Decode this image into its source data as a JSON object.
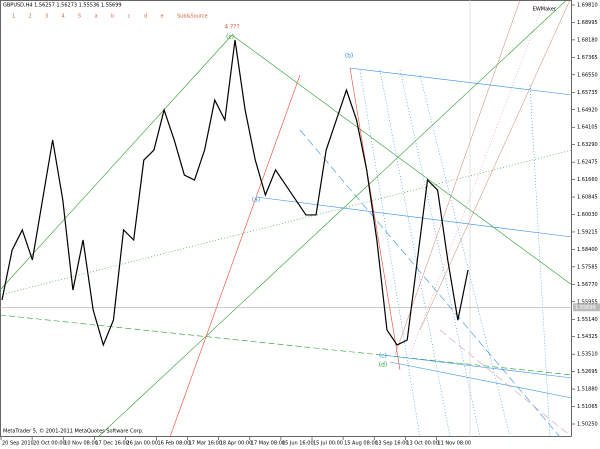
{
  "header": {
    "symbol": "GBPUSD,H4 1.56257 1.56273 1.55536 1.55699",
    "indicator": "EWMaker",
    "copyright": "MetaTrader 5, © 2001-2011 MetaQuotes Software Corp."
  },
  "toolbar": [
    "1",
    "2",
    "3",
    "4",
    "5",
    "a",
    "b",
    "c",
    "d",
    "e",
    "Sub&Source"
  ],
  "price_axis": {
    "lim": [
      1.5025,
      1.6981
    ],
    "current": 1.55699,
    "current_label": "1.55699",
    "ticks": [
      {
        "value": 1.6981,
        "label": "1.69810"
      },
      {
        "value": 1.68995,
        "label": "1.68995"
      },
      {
        "value": 1.6818,
        "label": "1.68180"
      },
      {
        "value": 1.67365,
        "label": "1.67365"
      },
      {
        "value": 1.6655,
        "label": "1.66550"
      },
      {
        "value": 1.65735,
        "label": "1.65735"
      },
      {
        "value": 1.6492,
        "label": "1.64920"
      },
      {
        "value": 1.64105,
        "label": "1.64105"
      },
      {
        "value": 1.6329,
        "label": "1.63290"
      },
      {
        "value": 1.62475,
        "label": "1.62475"
      },
      {
        "value": 1.6166,
        "label": "1.61660"
      },
      {
        "value": 1.60845,
        "label": "1.60845"
      },
      {
        "value": 1.6003,
        "label": "1.60030"
      },
      {
        "value": 1.59215,
        "label": "1.59215"
      },
      {
        "value": 1.584,
        "label": "1.58400"
      },
      {
        "value": 1.57585,
        "label": "1.57585"
      },
      {
        "value": 1.5677,
        "label": "1.56770"
      },
      {
        "value": 1.55955,
        "label": "1.55955"
      },
      {
        "value": 1.5514,
        "label": "1.55140"
      },
      {
        "value": 1.54325,
        "label": "1.54325"
      },
      {
        "value": 1.5351,
        "label": "1.53510"
      },
      {
        "value": 1.52695,
        "label": "1.52695"
      },
      {
        "value": 1.5188,
        "label": "1.51880"
      },
      {
        "value": 1.51065,
        "label": "1.51065"
      },
      {
        "value": 1.5025,
        "label": "1.50250"
      }
    ]
  },
  "time_axis": [
    "20 Sep 2010",
    "20 Oct 00:00",
    "10 Nov 08:00",
    "17 Dec 16:00",
    "26 Jan 00:00",
    "16 Feb 08:00",
    "17 Mar 16:00",
    "18 Apr 00:00",
    "17 May 08:00",
    "15 Jun 16:00",
    "15 Jul 00:00",
    "15 Aug 08:00",
    "13 Sep 16:00",
    "13 Oct 00:00",
    "11 Nov 08:00"
  ],
  "price": [
    1.5604,
    1.5837,
    1.5931,
    1.5791,
    1.6071,
    1.6351,
    1.6071,
    1.565,
    1.5884,
    1.5557,
    1.5394,
    1.551,
    1.5931,
    1.5884,
    1.6257,
    1.6304,
    1.6491,
    1.6351,
    1.6187,
    1.6164,
    1.6304,
    1.6537,
    1.6444,
    1.6818,
    1.6491,
    1.6257,
    1.6094,
    1.6211,
    1.6141,
    1.6071,
    1.6001,
    1.6001,
    1.6304,
    1.6444,
    1.6584,
    1.6444,
    1.6211,
    1.5884,
    1.5464,
    1.5394,
    1.5417,
    1.5791,
    1.6164,
    1.6117,
    1.5791,
    1.551,
    1.5744
  ],
  "wave_labels": [
    {
      "text": "4 ???"
    },
    {
      "text": "(c)"
    },
    {
      "text": "(b)"
    },
    {
      "text": "(a)"
    },
    {
      "text": "(c)"
    },
    {
      "text": "(d)"
    }
  ]
}
